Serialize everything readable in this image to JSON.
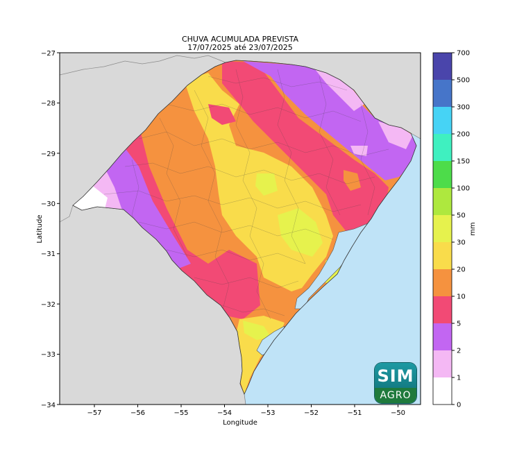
{
  "map": {
    "title_line1": "CHUVA ACUMULADA PREVISTA",
    "title_line2": "17/07/2025 até 23/07/2025",
    "xlabel": "Longitude",
    "ylabel": "Latitude",
    "x_ticks": [
      "−57",
      "−56",
      "−55",
      "−54",
      "−53",
      "−52",
      "−51",
      "−50"
    ],
    "y_ticks": [
      "−27",
      "−28",
      "−29",
      "−30",
      "−31",
      "−32",
      "−33",
      "−34"
    ],
    "xlim": [
      -57.8,
      -49.5
    ],
    "ylim": [
      -34,
      -27
    ],
    "region": "Rio Grande do Sul",
    "colors": {
      "ocean": "#bfe3f7",
      "neighbor_land": "#d9d9d9"
    }
  },
  "colorbar": {
    "unit": "mm",
    "ticks": [
      "0",
      "1",
      "2",
      "5",
      "10",
      "20",
      "30",
      "50",
      "100",
      "150",
      "200",
      "300",
      "500",
      "700"
    ],
    "colors": [
      "#ffffff",
      "#f4b8f4",
      "#c266f2",
      "#f24a75",
      "#f5923f",
      "#f9dc4b",
      "#e6f24d",
      "#aee83e",
      "#4ddc4a",
      "#3ff0c0",
      "#46d3f5",
      "#4675c9",
      "#4a45ab"
    ]
  },
  "logo": {
    "top": "SIM",
    "bottom": "AGRO"
  }
}
